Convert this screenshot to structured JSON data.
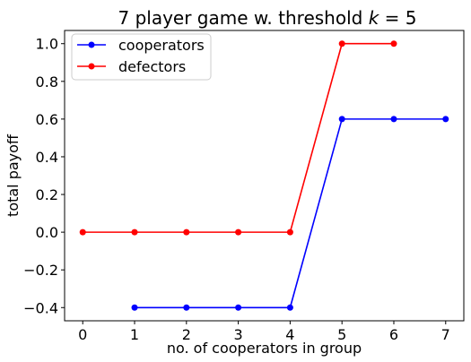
{
  "chart_data": {
    "type": "line",
    "title_main": "7 player game w. threshold ",
    "title_var": "k",
    "title_rest": " = 5",
    "xlabel": "no. of cooperators in group",
    "ylabel": "total payoff",
    "xlim": [
      -0.35,
      7.35
    ],
    "ylim": [
      -0.47,
      1.07
    ],
    "xticks": [
      0,
      1,
      2,
      3,
      4,
      5,
      6,
      7
    ],
    "xtick_labels": [
      "0",
      "1",
      "2",
      "3",
      "4",
      "5",
      "6",
      "7"
    ],
    "yticks": [
      -0.4,
      -0.2,
      0.0,
      0.2,
      0.4,
      0.6,
      0.8,
      1.0
    ],
    "ytick_labels": [
      "−0.4",
      "−0.2",
      "0.0",
      "0.2",
      "0.4",
      "0.6",
      "0.8",
      "1.0"
    ],
    "grid": false,
    "legend_position": "top-left",
    "series": [
      {
        "name": "cooperators",
        "color": "#0000ff",
        "x": [
          1,
          2,
          3,
          4,
          5,
          6,
          7
        ],
        "y": [
          -0.4,
          -0.4,
          -0.4,
          -0.4,
          0.6,
          0.6,
          0.6
        ]
      },
      {
        "name": "defectors",
        "color": "#ff0000",
        "x": [
          0,
          1,
          2,
          3,
          4,
          5,
          6
        ],
        "y": [
          0.0,
          0.0,
          0.0,
          0.0,
          0.0,
          1.0,
          1.0
        ]
      }
    ]
  }
}
